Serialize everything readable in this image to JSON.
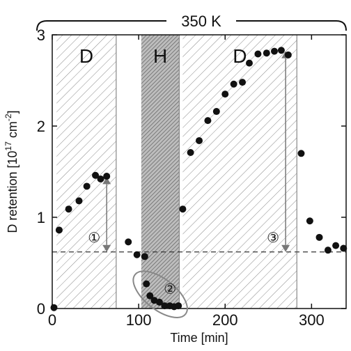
{
  "chart_data": {
    "type": "scatter",
    "title": "350 K",
    "xlabel": "Time [min]",
    "ylabel": "D retention [10",
    "ylabel_exp": "17",
    "ylabel_unit": " cm",
    "ylabel_unit_exp": "-2",
    "ylabel_close": "]",
    "xlim": [
      0,
      340
    ],
    "ylim": [
      0,
      3
    ],
    "xticks": [
      0,
      100,
      200,
      300
    ],
    "yticks": [
      0,
      1,
      2,
      3
    ],
    "xtick_labels": [
      "0",
      "100",
      "200",
      "300"
    ],
    "ytick_labels": [
      "0",
      "1",
      "2",
      "3"
    ],
    "reference_line_y": 0.62,
    "regions": [
      {
        "label": "D",
        "x_start": 5,
        "x_end": 74,
        "shade": "light"
      },
      {
        "label": "H",
        "x_start": 103,
        "x_end": 147,
        "shade": "dark"
      },
      {
        "label": "D",
        "x_start": 151,
        "x_end": 283,
        "shade": "light"
      }
    ],
    "annotations": [
      {
        "label": "①",
        "x": 63,
        "y_from": 0.62,
        "y_to": 1.44
      },
      {
        "label": "②",
        "x": 125,
        "y_from": 0.01,
        "y_to": 0.3
      },
      {
        "label": "③",
        "x": 270,
        "y_from": 0.62,
        "y_to": 2.82
      }
    ],
    "series": [
      {
        "x": [
          2,
          8,
          19,
          31,
          40,
          50,
          56,
          63,
          88,
          98,
          107,
          109,
          113,
          118,
          124,
          130,
          136,
          141,
          146,
          151,
          160,
          170,
          180,
          190,
          200,
          210,
          220,
          228,
          238,
          248,
          257,
          265,
          273,
          288,
          298,
          309,
          319,
          328,
          337
        ],
        "y": [
          0.01,
          0.86,
          1.09,
          1.18,
          1.34,
          1.46,
          1.42,
          1.45,
          0.73,
          0.59,
          0.57,
          0.27,
          0.14,
          0.09,
          0.07,
          0.03,
          0.03,
          0.02,
          0.03,
          1.09,
          1.71,
          1.84,
          2.06,
          2.16,
          2.35,
          2.46,
          2.48,
          2.69,
          2.79,
          2.8,
          2.82,
          2.83,
          2.78,
          1.7,
          0.96,
          0.78,
          0.64,
          0.69,
          0.66
        ]
      }
    ]
  }
}
